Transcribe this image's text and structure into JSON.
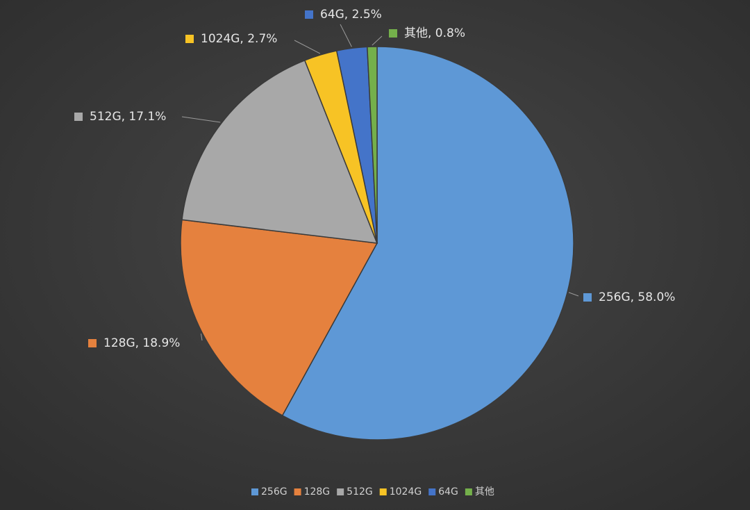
{
  "chart_data": {
    "type": "pie",
    "categories": [
      "256G",
      "128G",
      "512G",
      "1024G",
      "64G",
      "其他"
    ],
    "values": [
      58.0,
      18.9,
      17.1,
      2.7,
      2.5,
      0.8
    ],
    "value_labels": [
      "256G, 58.0%",
      "128G, 18.9%",
      "512G, 17.1%",
      "1024G, 2.7%",
      "64G, 2.5%",
      "其他, 0.8%"
    ],
    "colors": [
      "#5e98d6",
      "#e5813e",
      "#a8a8a8",
      "#f7c325",
      "#4474c9",
      "#74b04b"
    ],
    "legend": "bottom"
  }
}
